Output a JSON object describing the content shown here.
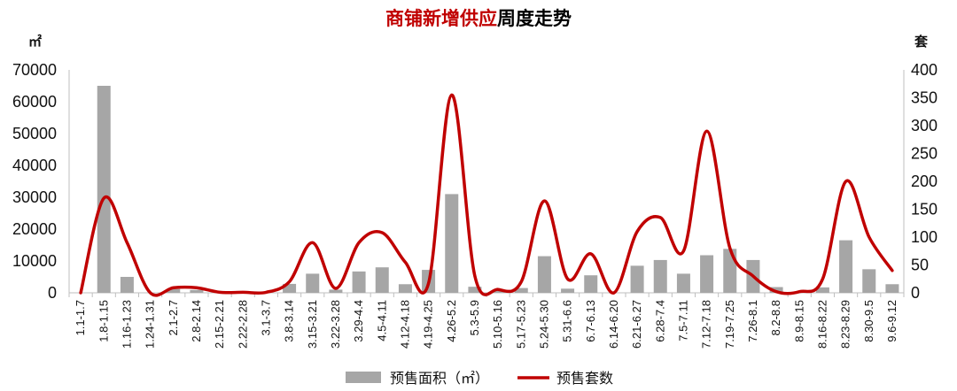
{
  "chart_data": {
    "type": "bar-line-combo",
    "title": {
      "highlight": "商铺新增供应",
      "rest": "周度走势",
      "highlight_color": "#C00000",
      "rest_color": "#000000"
    },
    "y_left": {
      "unit": "㎡",
      "ticks": [
        "0",
        "10000",
        "20000",
        "30000",
        "40000",
        "50000",
        "60000",
        "70000"
      ],
      "ylim": [
        0,
        70000
      ]
    },
    "y_right": {
      "unit": "套",
      "ticks": [
        "0",
        "50",
        "100",
        "150",
        "200",
        "250",
        "300",
        "350",
        "400"
      ],
      "ylim": [
        0,
        400
      ]
    },
    "categories": [
      "1.1-1.7",
      "1.8-1.15",
      "1.16-1.23",
      "1.24-1.31",
      "2.1-2.7",
      "2.8-2.14",
      "2.15-2.21",
      "2.22-2.28",
      "3.1-3.7",
      "3.8-3.14",
      "3.15-3.21",
      "3.22-3.28",
      "3.29-4.4",
      "4.5-4.11",
      "4.12-4.18",
      "4.19-4.25",
      "4.26-5.2",
      "5.3-5.9",
      "5.10-5.16",
      "5.17-5.23",
      "5.24-5.30",
      "5.31-6.6",
      "6.7-6.13",
      "6.14-6.20",
      "6.21-6.27",
      "6.28-7.4",
      "7.5-7.11",
      "7.12-7.18",
      "7.19-7.25",
      "7.26-8.1",
      "8.2-8.8",
      "8.9-8.15",
      "8.16-8.22",
      "8.23-8.29",
      "8.30-9.5",
      "9.6-9.12"
    ],
    "series": [
      {
        "name": "预售面积（㎡）",
        "axis": "left",
        "kind": "bar",
        "color": "#A6A6A6",
        "values": [
          0,
          65000,
          5000,
          0,
          1200,
          900,
          300,
          200,
          0,
          2800,
          6000,
          1000,
          6700,
          8000,
          2700,
          7200,
          31000,
          1900,
          700,
          1500,
          11500,
          1300,
          5500,
          0,
          8500,
          10300,
          6000,
          11800,
          13800,
          10300,
          1800,
          0,
          1700,
          16500,
          7400,
          2700
        ]
      },
      {
        "name": "预售套数",
        "axis": "right",
        "kind": "line",
        "color": "#C00000",
        "values": [
          0,
          170,
          90,
          0,
          9,
          9,
          1,
          1,
          1,
          20,
          90,
          8,
          90,
          108,
          55,
          17,
          355,
          30,
          6,
          20,
          165,
          25,
          70,
          0,
          110,
          135,
          75,
          290,
          80,
          30,
          2,
          2,
          25,
          200,
          100,
          40
        ]
      }
    ],
    "legend": {
      "position": "bottom"
    }
  }
}
